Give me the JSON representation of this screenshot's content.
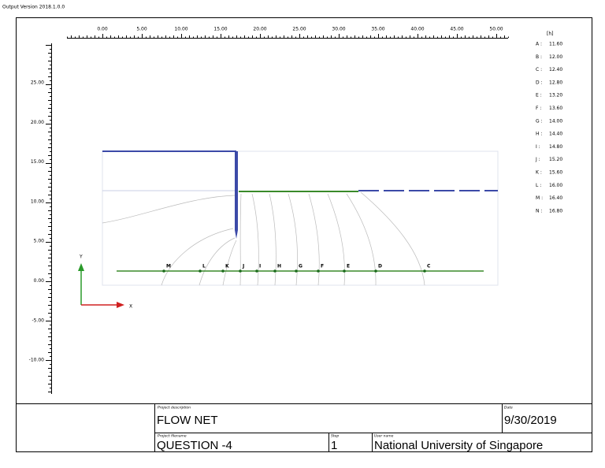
{
  "header": "Output Version 2018.1.0.0",
  "plot": {
    "x_tick_labels": [
      "0.00",
      "5.00",
      "10.00",
      "15.00",
      "20.00",
      "25.00",
      "30.00",
      "35.00",
      "40.00",
      "45.00",
      "50.00"
    ],
    "y_tick_labels": [
      "25.00",
      "20.00",
      "15.00",
      "10.00",
      "5.00",
      "0.00",
      "-5.00",
      "-10.00"
    ],
    "unit": "[h]",
    "head_legend": [
      {
        "label": "A :",
        "value": "11.60"
      },
      {
        "label": "B :",
        "value": "12.00"
      },
      {
        "label": "C :",
        "value": "12.40"
      },
      {
        "label": "D :",
        "value": "12.80"
      },
      {
        "label": "E :",
        "value": "13.20"
      },
      {
        "label": "F :",
        "value": "13.60"
      },
      {
        "label": "G :",
        "value": "14.00"
      },
      {
        "label": "H :",
        "value": "14.40"
      },
      {
        "label": "I :",
        "value": "14.80"
      },
      {
        "label": "J :",
        "value": "15.20"
      },
      {
        "label": "K :",
        "value": "15.60"
      },
      {
        "label": "L :",
        "value": "16.00"
      },
      {
        "label": "M :",
        "value": "16.40"
      },
      {
        "label": "N :",
        "value": "16.80"
      }
    ],
    "point_labels": [
      "M",
      "L",
      "K",
      "J",
      "I",
      "H",
      "G",
      "F",
      "E",
      "D",
      "C"
    ],
    "axis_x": "X",
    "axis_y": "Y"
  },
  "title_block": {
    "project_description_label": "Project description",
    "project_description": "FLOW NET",
    "date_label": "Date",
    "date": "9/30/2019",
    "project_filename_label": "Project filename",
    "project_filename": "QUESTION -4",
    "step_label": "Step",
    "step": "1",
    "user_name_label": "User name",
    "user_name": "National University of Singapore"
  }
}
